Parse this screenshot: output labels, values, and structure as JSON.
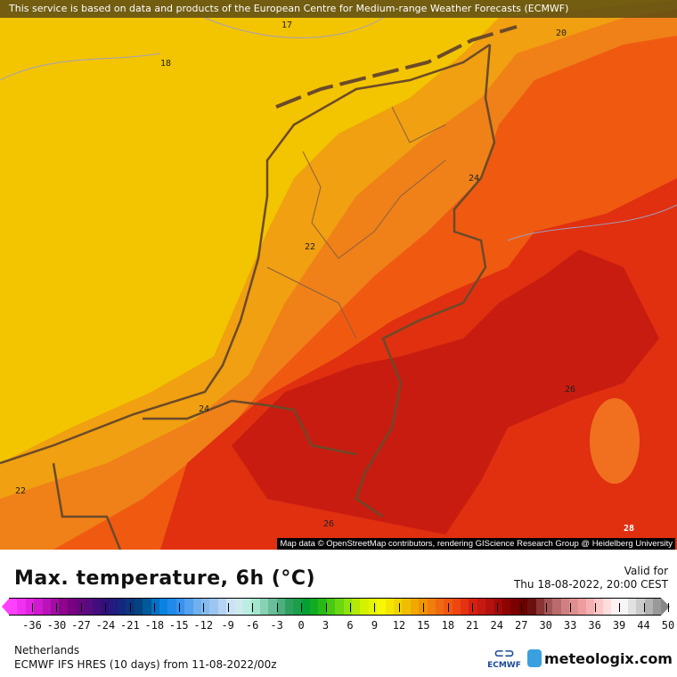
{
  "banner": "This service is based on data and products of the European Centre for Medium-range Weather Forecasts (ECMWF)",
  "attribution": "Map data © OpenStreetMap contributors, rendering GIScience Research Group @ Heidelberg University",
  "contour_labels": [
    "17",
    "18",
    "20",
    "24",
    "22",
    "24",
    "26",
    "22",
    "26",
    "28"
  ],
  "title": "Max. temperature, 6h (°C)",
  "valid_label": "Valid for",
  "valid_time": "Thu 18-08-2022, 20:00 CEST",
  "legend_ticks": [
    "-36",
    "-30",
    "-27",
    "-24",
    "-21",
    "-18",
    "-15",
    "-12",
    "-9",
    "-6",
    "-3",
    "0",
    "3",
    "6",
    "9",
    "12",
    "15",
    "18",
    "21",
    "24",
    "27",
    "30",
    "33",
    "36",
    "39",
    "44",
    "50"
  ],
  "legend_colors": [
    "#ff40ff",
    "#e020e0",
    "#b010b0",
    "#800080",
    "#5a0a80",
    "#30107a",
    "#102a80",
    "#004a80",
    "#0080e0",
    "#3090f0",
    "#70b0f0",
    "#a0c8f0",
    "#d8e8f8",
    "#b0f0d8",
    "#70c0a0",
    "#30a060",
    "#00a030",
    "#30c010",
    "#80e010",
    "#d0f000",
    "#f8f800",
    "#f0d000",
    "#f0a000",
    "#f07010",
    "#f04a10",
    "#d82010",
    "#b01010",
    "#880000",
    "#600000",
    "#a05050",
    "#d08080",
    "#f0a0a0",
    "#ffd0d0",
    "#ffffff",
    "#d0d0d0",
    "#999999"
  ],
  "region": "Netherlands",
  "model": "ECMWF IFS HRES (10 days) from 11-08-2022/00z",
  "ecmwf_logo": "ECMWF",
  "brand": "meteologix.com"
}
